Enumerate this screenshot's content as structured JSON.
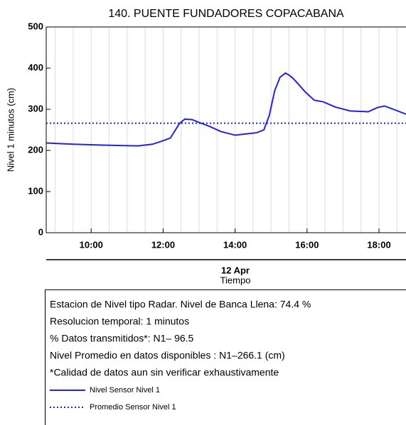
{
  "chart_data": {
    "type": "line",
    "title": "140. PUENTE FUNDADORES COPACABANA",
    "y_label": "Nivel 1 minutos (cm)",
    "x_date": "12 Apr",
    "x_label": "Tiempo",
    "xlim": [
      8.75,
      18.75
    ],
    "xticks": [
      {
        "value": 10,
        "label": "10:00"
      },
      {
        "value": 12,
        "label": "12:00"
      },
      {
        "value": 14,
        "label": "14:00"
      },
      {
        "value": 16,
        "label": "16:00"
      },
      {
        "value": 18,
        "label": "18:00"
      }
    ],
    "xgrid": [
      9,
      9.5,
      10,
      10.5,
      11,
      11.5,
      12,
      12.5,
      13,
      13.5,
      14,
      14.5,
      15,
      15.5,
      16,
      16.5,
      17,
      17.5,
      18,
      18.5
    ],
    "ylim": [
      0,
      500
    ],
    "yticks": [
      0,
      100,
      200,
      300,
      400,
      500
    ],
    "x": [
      8.75,
      9.5,
      10.3,
      11.3,
      11.7,
      11.95,
      12.2,
      12.45,
      12.6,
      12.8,
      13.0,
      13.3,
      13.6,
      14.0,
      14.3,
      14.6,
      14.8,
      14.95,
      15.1,
      15.25,
      15.4,
      15.5,
      15.6,
      15.75,
      15.95,
      16.2,
      16.45,
      16.8,
      17.2,
      17.7,
      17.95,
      18.15,
      18.4,
      18.75
    ],
    "series": [
      {
        "name": "Nivel Sensor Nivel 1",
        "color": "#2222dd",
        "values": [
          218,
          215,
          213,
          211,
          215,
          222,
          230,
          265,
          276,
          275,
          268,
          258,
          246,
          237,
          240,
          243,
          250,
          285,
          345,
          378,
          388,
          383,
          376,
          362,
          342,
          322,
          318,
          305,
          296,
          294,
          304,
          308,
          300,
          288
        ]
      },
      {
        "name": "Promedio Sensor Nivel 1",
        "color": "#2222dd",
        "value": 266.1,
        "style": "dotted"
      }
    ],
    "notes": [
      "Estacion de Nivel tipo Radar. Nivel de Banca Llena: 74.4 %",
      "Resolucion temporal: 1 minutos",
      "% Datos transmitidos*: N1– 96.5",
      "Nivel Promedio en datos disponibles : N1–266.1 (cm)",
      "*Calidad de datos aun sin verificar exhaustivamente"
    ]
  }
}
